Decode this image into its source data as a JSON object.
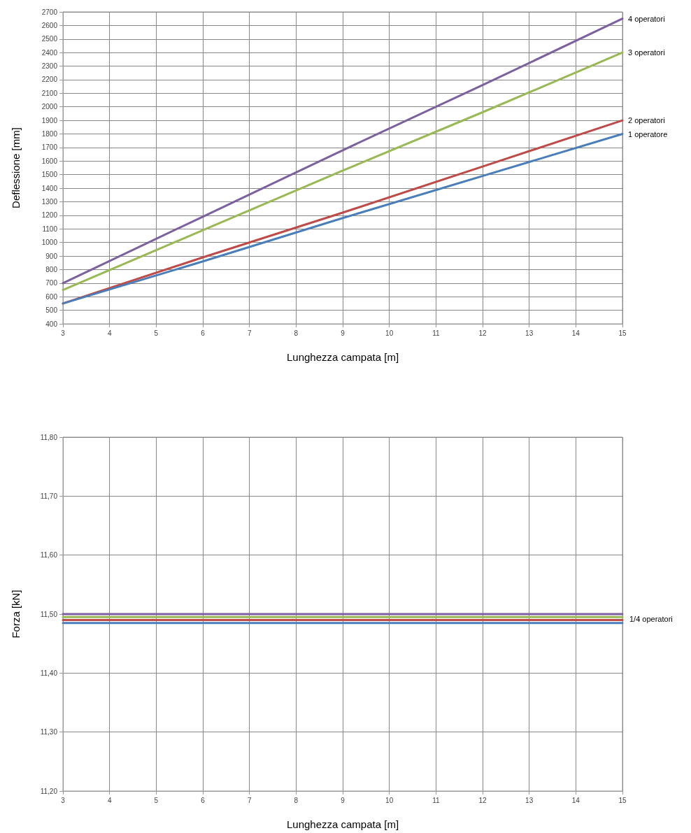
{
  "chart_data": [
    {
      "type": "line",
      "xlabel": "Lunghezza campata [m]",
      "ylabel": "Deflessione [mm]",
      "x": [
        3,
        6,
        9,
        12,
        15
      ],
      "series": [
        {
          "name": "4 operatori",
          "color": "#7d60a0",
          "values": [
            700,
            1190,
            1680,
            2160,
            2650
          ]
        },
        {
          "name": "3 operatori",
          "color": "#98b954",
          "values": [
            650,
            1090,
            1530,
            1960,
            2400
          ]
        },
        {
          "name": "2 operatori",
          "color": "#be4b48",
          "values": [
            550,
            890,
            1220,
            1560,
            1900
          ]
        },
        {
          "name": "1 operatore",
          "color": "#4a7ebb",
          "values": [
            550,
            860,
            1180,
            1490,
            1800
          ]
        }
      ],
      "xlim": [
        3,
        15
      ],
      "xticks": [
        3,
        4,
        5,
        6,
        7,
        8,
        9,
        10,
        11,
        12,
        13,
        14,
        15
      ],
      "ylim": [
        400,
        2700
      ],
      "yticks": [
        400,
        500,
        600,
        700,
        800,
        900,
        1000,
        1100,
        1200,
        1300,
        1400,
        1500,
        1600,
        1700,
        1800,
        1900,
        2000,
        2100,
        2200,
        2300,
        2400,
        2500,
        2600,
        2700
      ],
      "grid": true,
      "marker": "none"
    },
    {
      "type": "line",
      "xlabel": "Lunghezza campata [m]",
      "ylabel": "Forza [kN]",
      "x": [
        3,
        15
      ],
      "series": [
        {
          "color": "#7d60a0",
          "values": [
            11.5,
            11.5
          ]
        },
        {
          "color": "#98b954",
          "values": [
            11.495,
            11.495
          ]
        },
        {
          "color": "#be4b48",
          "values": [
            11.49,
            11.49
          ]
        },
        {
          "color": "#4a7ebb",
          "values": [
            11.485,
            11.485
          ]
        }
      ],
      "annotations": [
        {
          "text": "1/4 operatori",
          "x": 15,
          "y": 11.49
        }
      ],
      "xlim": [
        3,
        15
      ],
      "xticks": [
        3,
        4,
        5,
        6,
        7,
        8,
        9,
        10,
        11,
        12,
        13,
        14,
        15
      ],
      "ylim": [
        11.2,
        11.8
      ],
      "yticks": [
        {
          "value": 11.2,
          "label": "11,20"
        },
        {
          "value": 11.3,
          "label": "11,30"
        },
        {
          "value": 11.4,
          "label": "11,40"
        },
        {
          "value": 11.5,
          "label": "11,50"
        },
        {
          "value": 11.6,
          "label": "11,60"
        },
        {
          "value": 11.7,
          "label": "11,70"
        },
        {
          "value": 11.8,
          "label": "11,80"
        }
      ],
      "grid": true,
      "marker": "none"
    }
  ]
}
